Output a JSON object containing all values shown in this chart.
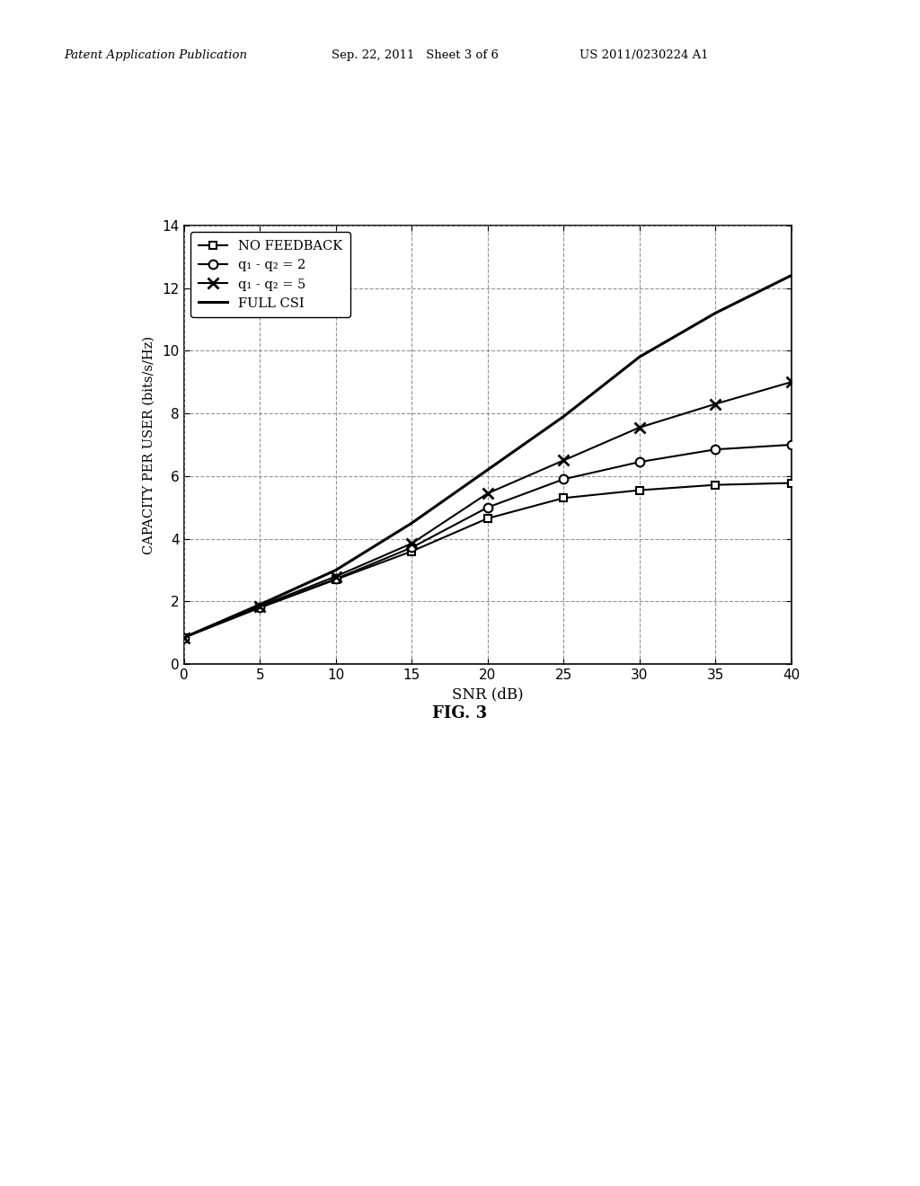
{
  "snr": [
    0,
    5,
    10,
    15,
    20,
    25,
    30,
    35,
    40
  ],
  "no_feedback": [
    0.85,
    1.8,
    2.7,
    3.6,
    4.65,
    5.3,
    5.55,
    5.72,
    5.78
  ],
  "q1q2_2": [
    0.85,
    1.82,
    2.72,
    3.72,
    5.0,
    5.9,
    6.45,
    6.85,
    7.0
  ],
  "q1q2_5": [
    0.85,
    1.85,
    2.8,
    3.85,
    5.45,
    6.5,
    7.55,
    8.3,
    9.0
  ],
  "full_csi": [
    0.85,
    1.9,
    3.0,
    4.5,
    6.2,
    7.9,
    9.8,
    11.2,
    12.4
  ],
  "xlabel": "SNR (dB)",
  "ylabel": "CAPACITY PER USER (bits/s/Hz)",
  "fig_label": "FIG. 3",
  "header_left": "Patent Application Publication",
  "header_mid": "Sep. 22, 2011   Sheet 3 of 6",
  "header_right": "US 2011/0230224 A1",
  "xlim": [
    0,
    40
  ],
  "ylim": [
    0,
    14
  ],
  "xticks": [
    0,
    5,
    10,
    15,
    20,
    25,
    30,
    35,
    40
  ],
  "yticks": [
    0,
    2,
    4,
    6,
    8,
    10,
    12,
    14
  ],
  "legend_no_feedback": "NO FEEDBACK",
  "legend_q1q2_2": "q₁ - q₂ = 2",
  "legend_q1q2_5": "q₁ - q₂ = 5",
  "legend_full_csi": "FULL CSI",
  "line_color": "#000000",
  "bg_color": "#ffffff",
  "grid_color": "#888888"
}
